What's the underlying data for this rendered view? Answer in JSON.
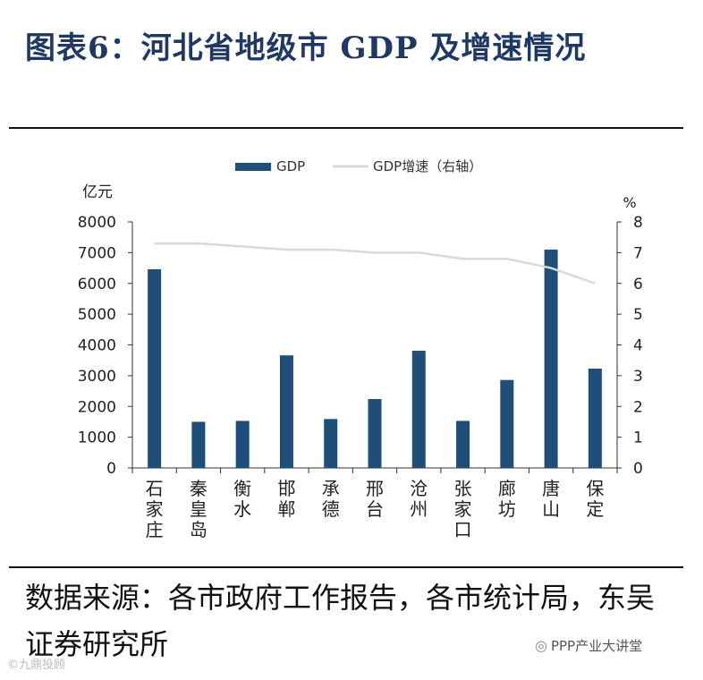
{
  "title": "图表6：河北省地级市 GDP 及增速情况",
  "source_text": "数据来源：各市政府工作报告，各市统计局，东吴证券研究所",
  "watermark_left": "©",
  "watermark_left_text": "九鼎投顾",
  "watermark_right": "PPP产业大讲堂",
  "colors": {
    "bar": "#1f4e79",
    "line": "#d9d9d9",
    "title": "#1f3864"
  },
  "chart_data": {
    "type": "bar",
    "title": "",
    "ylabel_left": "亿元",
    "ylabel_right": "%",
    "ylim_left": [
      0,
      8000
    ],
    "ylim_right": [
      0,
      8
    ],
    "yticks_left": [
      "0",
      "1000",
      "2000",
      "3000",
      "4000",
      "5000",
      "6000",
      "7000",
      "8000"
    ],
    "yticks_right": [
      "0",
      "1",
      "2",
      "3",
      "4",
      "5",
      "6",
      "7",
      "8"
    ],
    "categories": [
      "石家庄",
      "秦皇岛",
      "衡水",
      "邯郸",
      "承德",
      "邢台",
      "沧州",
      "张家口",
      "廊坊",
      "唐山",
      "保定"
    ],
    "series": [
      {
        "name": "GDP",
        "type": "bar",
        "axis": "left",
        "values": [
          6460,
          1500,
          1530,
          3660,
          1590,
          2240,
          3810,
          1530,
          2860,
          7100,
          3230
        ]
      },
      {
        "name": "GDP增速（右轴）",
        "type": "line",
        "axis": "right",
        "values": [
          7.3,
          7.3,
          7.2,
          7.1,
          7.1,
          7.0,
          7.0,
          6.8,
          6.8,
          6.5,
          6.0
        ]
      }
    ],
    "legend": [
      "GDP",
      "GDP增速（右轴）"
    ]
  }
}
